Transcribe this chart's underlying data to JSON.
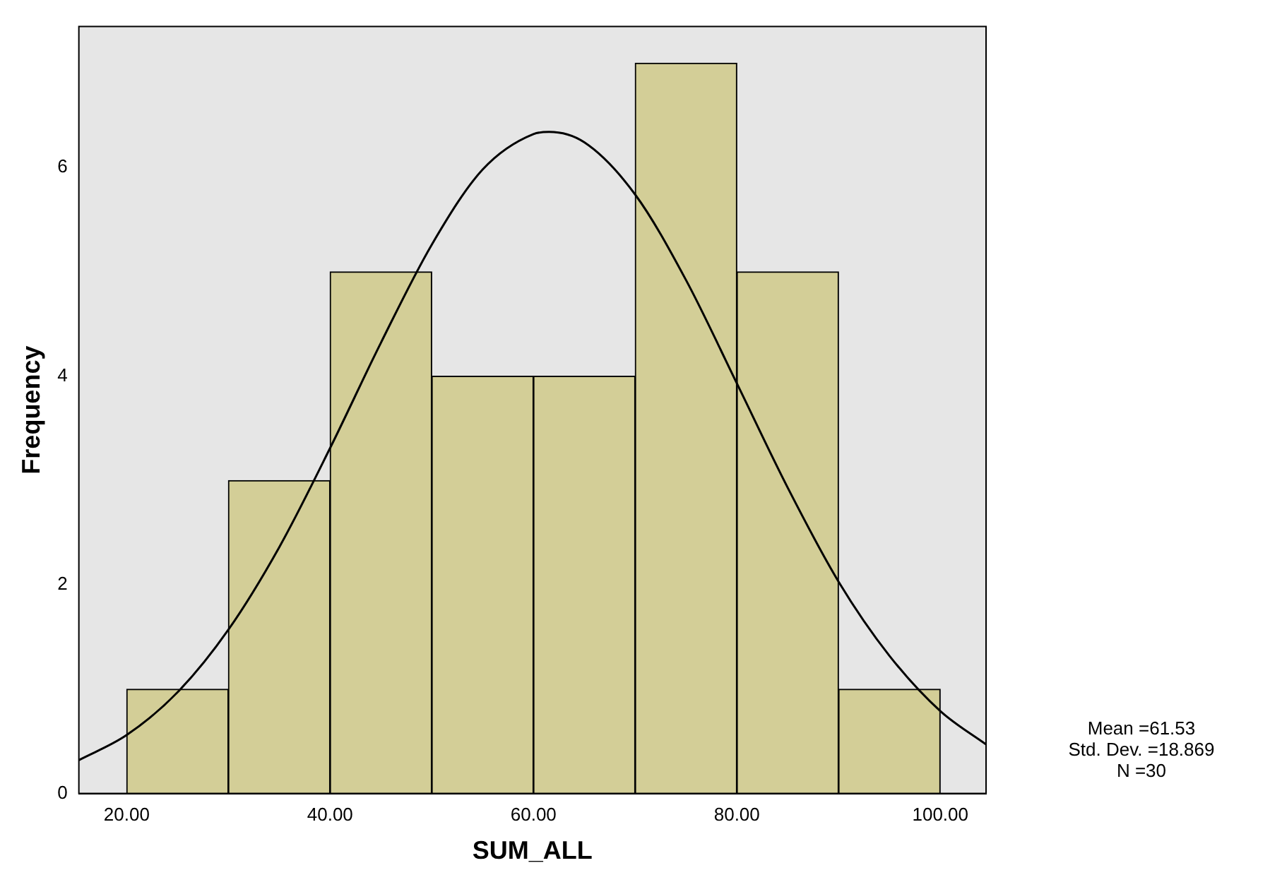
{
  "chart_data": {
    "type": "histogram",
    "xlabel": "SUM_ALL",
    "ylabel": "Frequency",
    "bins": [
      20,
      30,
      40,
      50,
      60,
      70,
      80,
      90,
      100
    ],
    "values": [
      1,
      3,
      5,
      4,
      4,
      7,
      5,
      1
    ],
    "color": "#d3ce97",
    "series": [
      {
        "type": "line",
        "color": "#000000",
        "x": [
          15.3,
          20,
          25,
          30,
          35,
          40,
          45,
          50,
          55,
          60,
          61.53,
          65,
          70,
          75,
          80,
          85,
          90,
          95,
          100,
          104.5
        ],
        "values": [
          0.32,
          0.56,
          0.97,
          1.57,
          2.36,
          3.31,
          4.32,
          5.26,
          5.98,
          6.32,
          6.34,
          6.24,
          5.74,
          4.92,
          3.93,
          2.93,
          2.03,
          1.32,
          0.79,
          0.47
        ]
      }
    ],
    "xlim": [
      15.3,
      104.5
    ],
    "xticks": [
      {
        "value": 20,
        "label": "20.00"
      },
      {
        "value": 40,
        "label": "40.00"
      },
      {
        "value": 60,
        "label": "60.00"
      },
      {
        "value": 80,
        "label": "80.00"
      },
      {
        "value": 100,
        "label": "100.00"
      }
    ],
    "ylim": [
      0,
      7.35
    ],
    "yticks": [
      0,
      2,
      4,
      6
    ],
    "grid": false,
    "legend": false,
    "marker": "none",
    "line_style": "solid",
    "annotations": [
      "Mean =61.53",
      "Std. Dev. =18.869",
      "N =30"
    ]
  }
}
